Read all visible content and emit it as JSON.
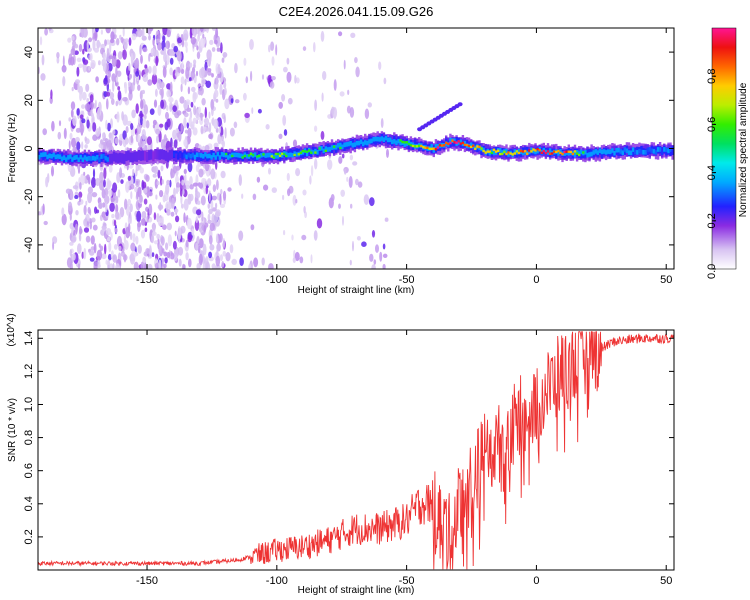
{
  "chart_data": [
    {
      "type": "heatmap",
      "title": "C2E4.2026.041.15.09.G26",
      "xlabel": "Height of straight line (km)",
      "ylabel": "Frequency (Hz)",
      "xlim": [
        -192,
        53
      ],
      "ylim": [
        -50,
        50
      ],
      "xticks": [
        -150,
        -100,
        -50,
        0,
        50
      ],
      "yticks": [
        -40,
        -20,
        0,
        20,
        40
      ],
      "colorbar": {
        "label": "Normalized spectral amplitude",
        "range": [
          0.0,
          1.0
        ],
        "ticks": [
          0.0,
          0.2,
          0.4,
          0.6,
          0.8
        ]
      },
      "ridge": {
        "x": [
          -192,
          -180,
          -165,
          -150,
          -140,
          -120,
          -100,
          -85,
          -70,
          -60,
          -50,
          -40,
          -33,
          -28,
          -20,
          -10,
          0,
          10,
          20,
          35,
          53
        ],
        "frequency": [
          -3,
          -4,
          -4,
          -3,
          -3,
          -3,
          -3,
          -1,
          2,
          4,
          2,
          0,
          3,
          2,
          -1,
          -2,
          -1,
          -2,
          -2,
          -1,
          -1
        ],
        "amplitude": [
          0.4,
          0.45,
          0.3,
          0.2,
          0.25,
          0.5,
          0.6,
          0.55,
          0.5,
          0.45,
          0.55,
          0.85,
          0.95,
          0.9,
          0.65,
          0.75,
          0.85,
          0.9,
          0.45,
          0.35,
          0.3
        ]
      },
      "noise_region_x": [
        -180,
        -120
      ]
    },
    {
      "type": "line",
      "title": "",
      "xlabel": "Height of straight line (km)",
      "ylabel": "SNR (10 * v/v)",
      "y_multiplier": "(x10^4)",
      "xlim": [
        -192,
        53
      ],
      "ylim": [
        0,
        1.45
      ],
      "xticks": [
        -150,
        -100,
        -50,
        0,
        50
      ],
      "yticks": [
        0.2,
        0.4,
        0.6,
        0.8,
        1.0,
        1.2,
        1.4
      ],
      "series": [
        {
          "name": "SNR",
          "color": "#ee3333",
          "x": [
            -192,
            -160,
            -130,
            -115,
            -100,
            -90,
            -80,
            -70,
            -60,
            -50,
            -45,
            -40,
            -33,
            -30,
            -25,
            -20,
            -15,
            -10,
            -5,
            0,
            5,
            10,
            20,
            30,
            40,
            53
          ],
          "y": [
            0.04,
            0.04,
            0.04,
            0.06,
            0.12,
            0.14,
            0.18,
            0.25,
            0.25,
            0.3,
            0.4,
            0.4,
            0.2,
            0.4,
            0.55,
            0.7,
            0.75,
            0.85,
            0.95,
            1.0,
            1.1,
            1.2,
            1.3,
            1.38,
            1.4,
            1.4
          ]
        }
      ]
    }
  ]
}
